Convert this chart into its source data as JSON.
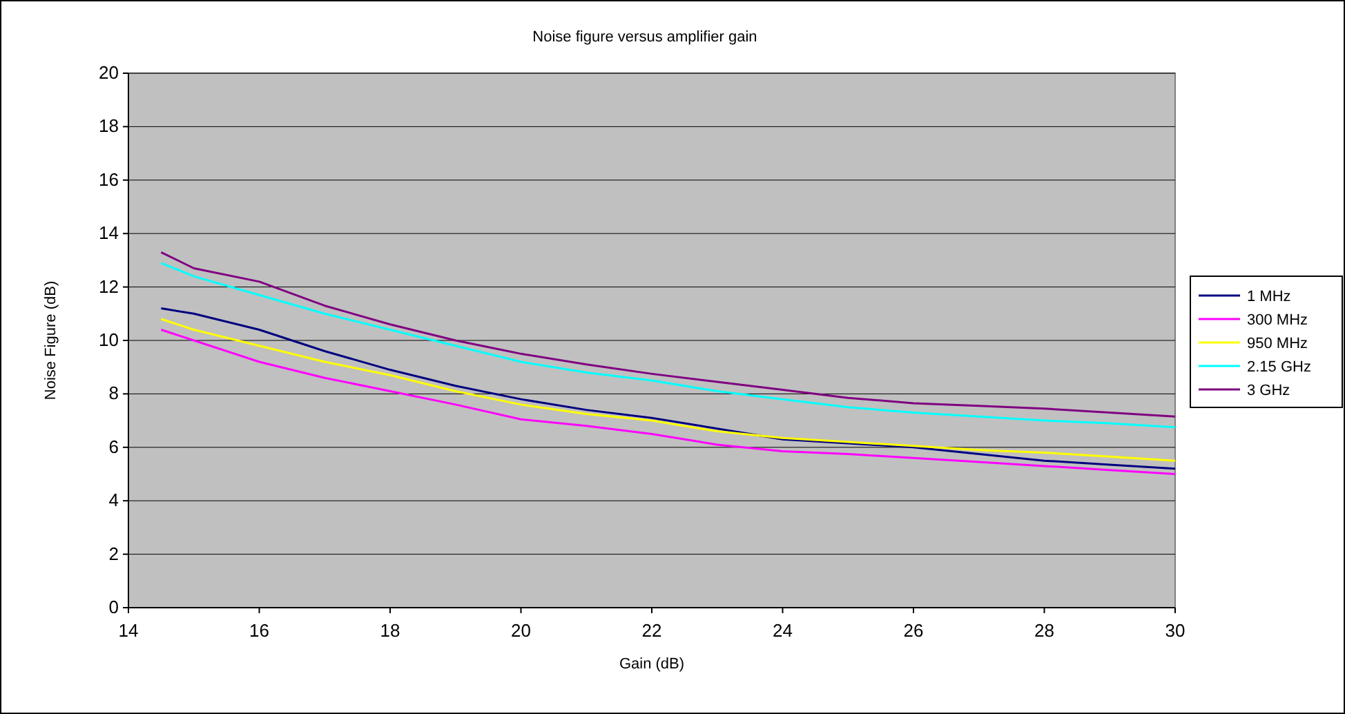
{
  "chart_data": {
    "type": "line",
    "title": "Noise figure versus amplifier gain",
    "xlabel": "Gain (dB)",
    "ylabel": "Noise Figure (dB)",
    "x": [
      14.5,
      15,
      16,
      17,
      18,
      19,
      20,
      21,
      22,
      23,
      24,
      25,
      26,
      27,
      28,
      29,
      30
    ],
    "xlim": [
      14,
      30
    ],
    "xticks": [
      14,
      16,
      18,
      20,
      22,
      24,
      26,
      28,
      30
    ],
    "ylim": [
      0,
      20
    ],
    "yticks": [
      0,
      2,
      4,
      6,
      8,
      10,
      12,
      14,
      16,
      18,
      20
    ],
    "grid": "y",
    "legend": "right",
    "marker": "none",
    "line_style": "solid",
    "series": [
      {
        "name": "1 MHz",
        "color": "#000080",
        "values": [
          11.2,
          11.0,
          10.4,
          9.6,
          8.9,
          8.3,
          7.8,
          7.4,
          7.1,
          6.7,
          6.3,
          6.15,
          6.0,
          5.75,
          5.5,
          5.35,
          5.2
        ]
      },
      {
        "name": "300 MHz",
        "color": "#ff00ff",
        "values": [
          10.4,
          10.0,
          9.2,
          8.6,
          8.1,
          7.6,
          7.05,
          6.8,
          6.5,
          6.1,
          5.85,
          5.75,
          5.6,
          5.45,
          5.3,
          5.15,
          5.0
        ]
      },
      {
        "name": "950 MHz",
        "color": "#ffff00",
        "values": [
          10.8,
          10.4,
          9.8,
          9.2,
          8.7,
          8.1,
          7.6,
          7.25,
          7.0,
          6.6,
          6.35,
          6.2,
          6.05,
          5.9,
          5.8,
          5.65,
          5.5
        ]
      },
      {
        "name": "2.15 GHz",
        "color": "#00ffff",
        "values": [
          12.9,
          12.4,
          11.7,
          11.0,
          10.4,
          9.8,
          9.2,
          8.8,
          8.5,
          8.1,
          7.8,
          7.5,
          7.3,
          7.15,
          7.0,
          6.9,
          6.75
        ]
      },
      {
        "name": "3 GHz",
        "color": "#800080",
        "values": [
          13.3,
          12.7,
          12.2,
          11.3,
          10.6,
          10.0,
          9.5,
          9.1,
          8.75,
          8.45,
          8.15,
          7.85,
          7.65,
          7.55,
          7.45,
          7.3,
          7.15
        ]
      }
    ]
  }
}
